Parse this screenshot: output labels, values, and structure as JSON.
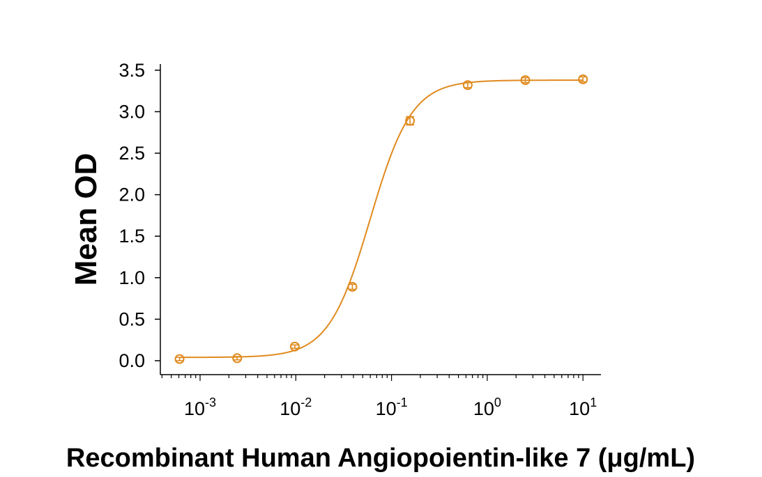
{
  "chart_data": {
    "type": "scatter",
    "title": "",
    "xlabel": "Recombinant Human Angiopoientin-like 7 (μg/mL)",
    "ylabel": "Mean OD",
    "x_scale": "log",
    "xlim": [
      0.0004,
      15
    ],
    "ylim": [
      -0.15,
      3.6
    ],
    "x_ticks": [
      {
        "value": 0.001,
        "base": "10",
        "exp": "-3"
      },
      {
        "value": 0.01,
        "base": "10",
        "exp": "-2"
      },
      {
        "value": 0.1,
        "base": "10",
        "exp": "-1"
      },
      {
        "value": 1,
        "base": "10",
        "exp": "0"
      },
      {
        "value": 10,
        "base": "10",
        "exp": "1"
      }
    ],
    "y_ticks": [
      {
        "value": 0.0,
        "label": "0.0"
      },
      {
        "value": 0.5,
        "label": "0.5"
      },
      {
        "value": 1.0,
        "label": "1.0"
      },
      {
        "value": 1.5,
        "label": "1.5"
      },
      {
        "value": 2.0,
        "label": "2.0"
      },
      {
        "value": 2.5,
        "label": "2.5"
      },
      {
        "value": 3.0,
        "label": "3.0"
      },
      {
        "value": 3.5,
        "label": "3.5"
      }
    ],
    "grid": false,
    "color": "#E08A1E",
    "series": [
      {
        "x": [
          0.00061,
          0.00244,
          0.00977,
          0.039,
          0.156,
          0.625,
          2.5,
          10
        ],
        "y": [
          0.02,
          0.03,
          0.17,
          0.89,
          2.89,
          3.32,
          3.38,
          3.39
        ],
        "error": [
          0.02,
          0.02,
          0.02,
          0.03,
          0.05,
          0.03,
          0.03,
          0.03
        ]
      }
    ],
    "fit": {
      "model": "4PL",
      "bottom": 0.04,
      "top": 3.38,
      "ec50": 0.06,
      "hill": 2.0
    }
  }
}
